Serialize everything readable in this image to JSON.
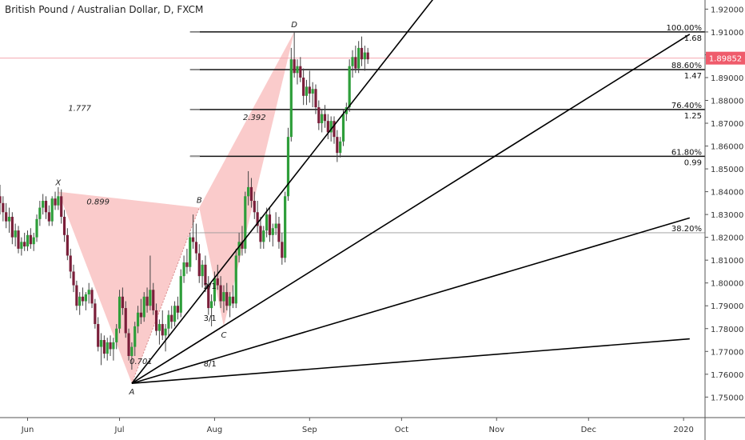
{
  "header": {
    "title": "British Pound / Australian Dollar, D, FXCM"
  },
  "colors": {
    "up": "#26a69a",
    "up_body": "#2e9e3a",
    "down": "#ef5350",
    "down_body": "#7a1f3a",
    "wick": "#444444",
    "pattern_fill": "#f8b9b9",
    "price_tag": "#ef5b6b",
    "fib_line": "#111111",
    "axis_text": "#333333"
  },
  "chart_data": {
    "type": "candlestick",
    "title": "British Pound / Australian Dollar, D, FXCM",
    "x_axis": {
      "ticks": [
        {
          "label": "Jun",
          "t": 0
        },
        {
          "label": "Jul",
          "t": 30
        },
        {
          "label": "Aug",
          "t": 61
        },
        {
          "label": "Sep",
          "t": 92
        },
        {
          "label": "Oct",
          "t": 122
        },
        {
          "label": "Nov",
          "t": 153
        },
        {
          "label": "Dec",
          "t": 183
        },
        {
          "label": "2020",
          "t": 214
        }
      ],
      "range": [
        -9,
        221
      ]
    },
    "y_axis": {
      "ticks": [
        "1.75000",
        "1.76000",
        "1.77000",
        "1.78000",
        "1.79000",
        "1.80000",
        "1.81000",
        "1.82000",
        "1.83000",
        "1.84000",
        "1.85000",
        "1.86000",
        "1.87000",
        "1.88000",
        "1.89000",
        "1.90000",
        "1.91000",
        "1.92000"
      ],
      "range": [
        1.741,
        1.924
      ]
    },
    "current_price": {
      "label": "1.89852",
      "value": 1.89852
    },
    "candles": [
      [
        -9,
        1.838,
        1.843,
        1.83,
        1.835
      ],
      [
        -8,
        1.835,
        1.838,
        1.827,
        1.831
      ],
      [
        -7,
        1.831,
        1.835,
        1.824,
        1.827
      ],
      [
        -6,
        1.827,
        1.833,
        1.822,
        1.829
      ],
      [
        -5,
        1.829,
        1.831,
        1.817,
        1.82
      ],
      [
        -4,
        1.82,
        1.826,
        1.816,
        1.823
      ],
      [
        -3,
        1.823,
        1.825,
        1.813,
        1.815
      ],
      [
        -2,
        1.815,
        1.82,
        1.812,
        1.818
      ],
      [
        -1,
        1.818,
        1.822,
        1.814,
        1.816
      ],
      [
        0,
        1.816,
        1.823,
        1.814,
        1.821
      ],
      [
        1,
        1.821,
        1.824,
        1.815,
        1.817
      ],
      [
        2,
        1.817,
        1.822,
        1.814,
        1.82
      ],
      [
        3,
        1.82,
        1.83,
        1.818,
        1.828
      ],
      [
        4,
        1.828,
        1.836,
        1.825,
        1.833
      ],
      [
        5,
        1.833,
        1.839,
        1.83,
        1.836
      ],
      [
        6,
        1.836,
        1.838,
        1.828,
        1.831
      ],
      [
        7,
        1.831,
        1.834,
        1.825,
        1.827
      ],
      [
        8,
        1.827,
        1.838,
        1.825,
        1.837
      ],
      [
        9,
        1.837,
        1.84,
        1.832,
        1.834
      ],
      [
        10,
        1.834,
        1.842,
        1.832,
        1.838
      ],
      [
        11,
        1.838,
        1.841,
        1.826,
        1.829
      ],
      [
        12,
        1.829,
        1.832,
        1.818,
        1.821
      ],
      [
        13,
        1.821,
        1.824,
        1.81,
        1.812
      ],
      [
        14,
        1.812,
        1.815,
        1.802,
        1.805
      ],
      [
        15,
        1.805,
        1.808,
        1.796,
        1.799
      ],
      [
        16,
        1.799,
        1.801,
        1.788,
        1.79
      ],
      [
        17,
        1.79,
        1.796,
        1.786,
        1.794
      ],
      [
        18,
        1.794,
        1.798,
        1.79,
        1.792
      ],
      [
        19,
        1.792,
        1.796,
        1.788,
        1.795
      ],
      [
        20,
        1.795,
        1.8,
        1.791,
        1.797
      ],
      [
        21,
        1.797,
        1.798,
        1.789,
        1.791
      ],
      [
        22,
        1.791,
        1.793,
        1.78,
        1.782
      ],
      [
        23,
        1.782,
        1.785,
        1.77,
        1.772
      ],
      [
        24,
        1.772,
        1.778,
        1.764,
        1.775
      ],
      [
        25,
        1.775,
        1.777,
        1.767,
        1.769
      ],
      [
        26,
        1.769,
        1.776,
        1.766,
        1.774
      ],
      [
        27,
        1.774,
        1.777,
        1.768,
        1.771
      ],
      [
        28,
        1.771,
        1.776,
        1.766,
        1.774
      ],
      [
        29,
        1.774,
        1.782,
        1.771,
        1.78
      ],
      [
        30,
        1.78,
        1.797,
        1.778,
        1.794
      ],
      [
        31,
        1.794,
        1.798,
        1.786,
        1.789
      ],
      [
        32,
        1.789,
        1.792,
        1.776,
        1.778
      ],
      [
        33,
        1.778,
        1.78,
        1.766,
        1.768
      ],
      [
        34,
        1.768,
        1.774,
        1.762,
        1.772
      ],
      [
        35,
        1.772,
        1.783,
        1.768,
        1.781
      ],
      [
        36,
        1.781,
        1.79,
        1.778,
        1.787
      ],
      [
        37,
        1.787,
        1.793,
        1.782,
        1.785
      ],
      [
        38,
        1.785,
        1.796,
        1.783,
        1.794
      ],
      [
        39,
        1.794,
        1.798,
        1.787,
        1.79
      ],
      [
        40,
        1.79,
        1.812,
        1.788,
        1.797
      ],
      [
        41,
        1.797,
        1.8,
        1.786,
        1.788
      ],
      [
        42,
        1.788,
        1.791,
        1.777,
        1.779
      ],
      [
        43,
        1.779,
        1.784,
        1.773,
        1.782
      ],
      [
        44,
        1.782,
        1.788,
        1.775,
        1.777
      ],
      [
        45,
        1.777,
        1.782,
        1.77,
        1.78
      ],
      [
        46,
        1.78,
        1.788,
        1.776,
        1.786
      ],
      [
        47,
        1.786,
        1.79,
        1.78,
        1.783
      ],
      [
        48,
        1.783,
        1.792,
        1.781,
        1.79
      ],
      [
        49,
        1.79,
        1.794,
        1.784,
        1.787
      ],
      [
        50,
        1.787,
        1.806,
        1.785,
        1.803
      ],
      [
        51,
        1.803,
        1.812,
        1.8,
        1.809
      ],
      [
        52,
        1.809,
        1.815,
        1.804,
        1.807
      ],
      [
        53,
        1.807,
        1.822,
        1.805,
        1.82
      ],
      [
        54,
        1.82,
        1.83,
        1.815,
        1.818
      ],
      [
        55,
        1.818,
        1.826,
        1.81,
        1.813
      ],
      [
        56,
        1.813,
        1.817,
        1.8,
        1.803
      ],
      [
        57,
        1.803,
        1.81,
        1.798,
        1.808
      ],
      [
        58,
        1.808,
        1.812,
        1.796,
        1.799
      ],
      [
        59,
        1.799,
        1.803,
        1.786,
        1.789
      ],
      [
        60,
        1.789,
        1.795,
        1.781,
        1.792
      ],
      [
        61,
        1.792,
        1.805,
        1.79,
        1.802
      ],
      [
        62,
        1.802,
        1.808,
        1.797,
        1.799
      ],
      [
        63,
        1.799,
        1.803,
        1.789,
        1.792
      ],
      [
        64,
        1.792,
        1.799,
        1.787,
        1.796
      ],
      [
        65,
        1.796,
        1.8,
        1.788,
        1.79
      ],
      [
        66,
        1.79,
        1.796,
        1.785,
        1.794
      ],
      [
        67,
        1.794,
        1.799,
        1.789,
        1.791
      ],
      [
        68,
        1.791,
        1.815,
        1.789,
        1.812
      ],
      [
        69,
        1.812,
        1.822,
        1.809,
        1.818
      ],
      [
        70,
        1.818,
        1.825,
        1.812,
        1.815
      ],
      [
        71,
        1.815,
        1.84,
        1.813,
        1.838
      ],
      [
        72,
        1.838,
        1.849,
        1.834,
        1.842
      ],
      [
        73,
        1.842,
        1.846,
        1.833,
        1.836
      ],
      [
        74,
        1.836,
        1.84,
        1.828,
        1.831
      ],
      [
        75,
        1.831,
        1.836,
        1.822,
        1.825
      ],
      [
        76,
        1.825,
        1.829,
        1.815,
        1.818
      ],
      [
        77,
        1.818,
        1.825,
        1.815,
        1.823
      ],
      [
        78,
        1.823,
        1.833,
        1.82,
        1.83
      ],
      [
        79,
        1.83,
        1.833,
        1.818,
        1.821
      ],
      [
        80,
        1.821,
        1.826,
        1.816,
        1.824
      ],
      [
        81,
        1.824,
        1.831,
        1.821,
        1.826
      ],
      [
        82,
        1.826,
        1.829,
        1.815,
        1.818
      ],
      [
        83,
        1.818,
        1.822,
        1.808,
        1.811
      ],
      [
        84,
        1.811,
        1.84,
        1.809,
        1.838
      ],
      [
        85,
        1.838,
        1.868,
        1.836,
        1.864
      ],
      [
        86,
        1.864,
        1.903,
        1.862,
        1.898
      ],
      [
        87,
        1.898,
        1.91,
        1.89,
        1.892
      ],
      [
        88,
        1.892,
        1.898,
        1.887,
        1.895
      ],
      [
        89,
        1.895,
        1.899,
        1.888,
        1.89
      ],
      [
        90,
        1.89,
        1.894,
        1.878,
        1.882
      ],
      [
        91,
        1.882,
        1.889,
        1.878,
        1.886
      ],
      [
        92,
        1.886,
        1.893,
        1.879,
        1.883
      ],
      [
        93,
        1.883,
        1.888,
        1.877,
        1.885
      ],
      [
        94,
        1.885,
        1.887,
        1.874,
        1.877
      ],
      [
        95,
        1.877,
        1.88,
        1.867,
        1.87
      ],
      [
        96,
        1.87,
        1.876,
        1.866,
        1.874
      ],
      [
        97,
        1.874,
        1.878,
        1.868,
        1.871
      ],
      [
        98,
        1.871,
        1.874,
        1.863,
        1.866
      ],
      [
        99,
        1.866,
        1.873,
        1.862,
        1.871
      ],
      [
        100,
        1.871,
        1.873,
        1.861,
        1.864
      ],
      [
        101,
        1.864,
        1.867,
        1.853,
        1.857
      ],
      [
        102,
        1.857,
        1.864,
        1.855,
        1.862
      ],
      [
        103,
        1.862,
        1.876,
        1.86,
        1.874
      ],
      [
        104,
        1.874,
        1.879,
        1.871,
        1.877
      ],
      [
        105,
        1.877,
        1.898,
        1.875,
        1.895
      ],
      [
        106,
        1.895,
        1.902,
        1.89,
        1.899
      ],
      [
        107,
        1.899,
        1.904,
        1.892,
        1.894
      ],
      [
        108,
        1.894,
        1.906,
        1.892,
        1.903
      ],
      [
        109,
        1.903,
        1.908,
        1.895,
        1.898
      ],
      [
        110,
        1.898,
        1.904,
        1.893,
        1.901
      ],
      [
        111,
        1.901,
        1.903,
        1.896,
        1.898
      ]
    ],
    "pattern": {
      "points": [
        {
          "name": "X",
          "t": 10,
          "price": 1.84
        },
        {
          "name": "A",
          "t": 34,
          "price": 1.756
        },
        {
          "name": "B",
          "t": 56,
          "price": 1.833
        },
        {
          "name": "C",
          "t": 64,
          "price": 1.781
        },
        {
          "name": "D",
          "t": 87,
          "price": 1.91
        }
      ],
      "ratios": [
        {
          "label": "0.899",
          "t": 23,
          "price": 1.8345
        },
        {
          "label": "0.701",
          "t": 37,
          "price": 1.7645
        },
        {
          "label": "1.777",
          "t": 17,
          "price": 1.8755
        },
        {
          "label": "2.392",
          "t": 74,
          "price": 1.8715
        }
      ]
    },
    "fib_levels": [
      {
        "pct": "100.00%",
        "ratio": "1.68",
        "price": 1.91,
        "t_start": 53
      },
      {
        "pct": "88.60%",
        "ratio": "1.47",
        "price": 1.8935,
        "t_start": 53
      },
      {
        "pct": "76.40%",
        "ratio": "1.25",
        "price": 1.876,
        "t_start": 53
      },
      {
        "pct": "61.80%",
        "ratio": "0.99",
        "price": 1.8555,
        "t_start": 53
      },
      {
        "pct": "38.20%",
        "ratio": "",
        "price": 1.822,
        "t_start": 53
      }
    ],
    "gann_fan": {
      "origin": {
        "t": 34,
        "price": 1.756
      },
      "rays": [
        {
          "label": "",
          "t_end": 135,
          "price_end": 1.929
        },
        {
          "label": "2/1",
          "t_end": 216,
          "price_end": 1.909
        },
        {
          "label": "3/1",
          "t_end": 216,
          "price_end": 1.8285
        },
        {
          "label": "8/1",
          "t_end": 216,
          "price_end": 1.7755
        }
      ],
      "labels": [
        {
          "label": "2/1",
          "t": 59.5,
          "price": 1.7975
        },
        {
          "label": "3/1",
          "t": 59.5,
          "price": 1.7835
        },
        {
          "label": "8/1",
          "t": 59.5,
          "price": 1.7635
        }
      ]
    }
  }
}
